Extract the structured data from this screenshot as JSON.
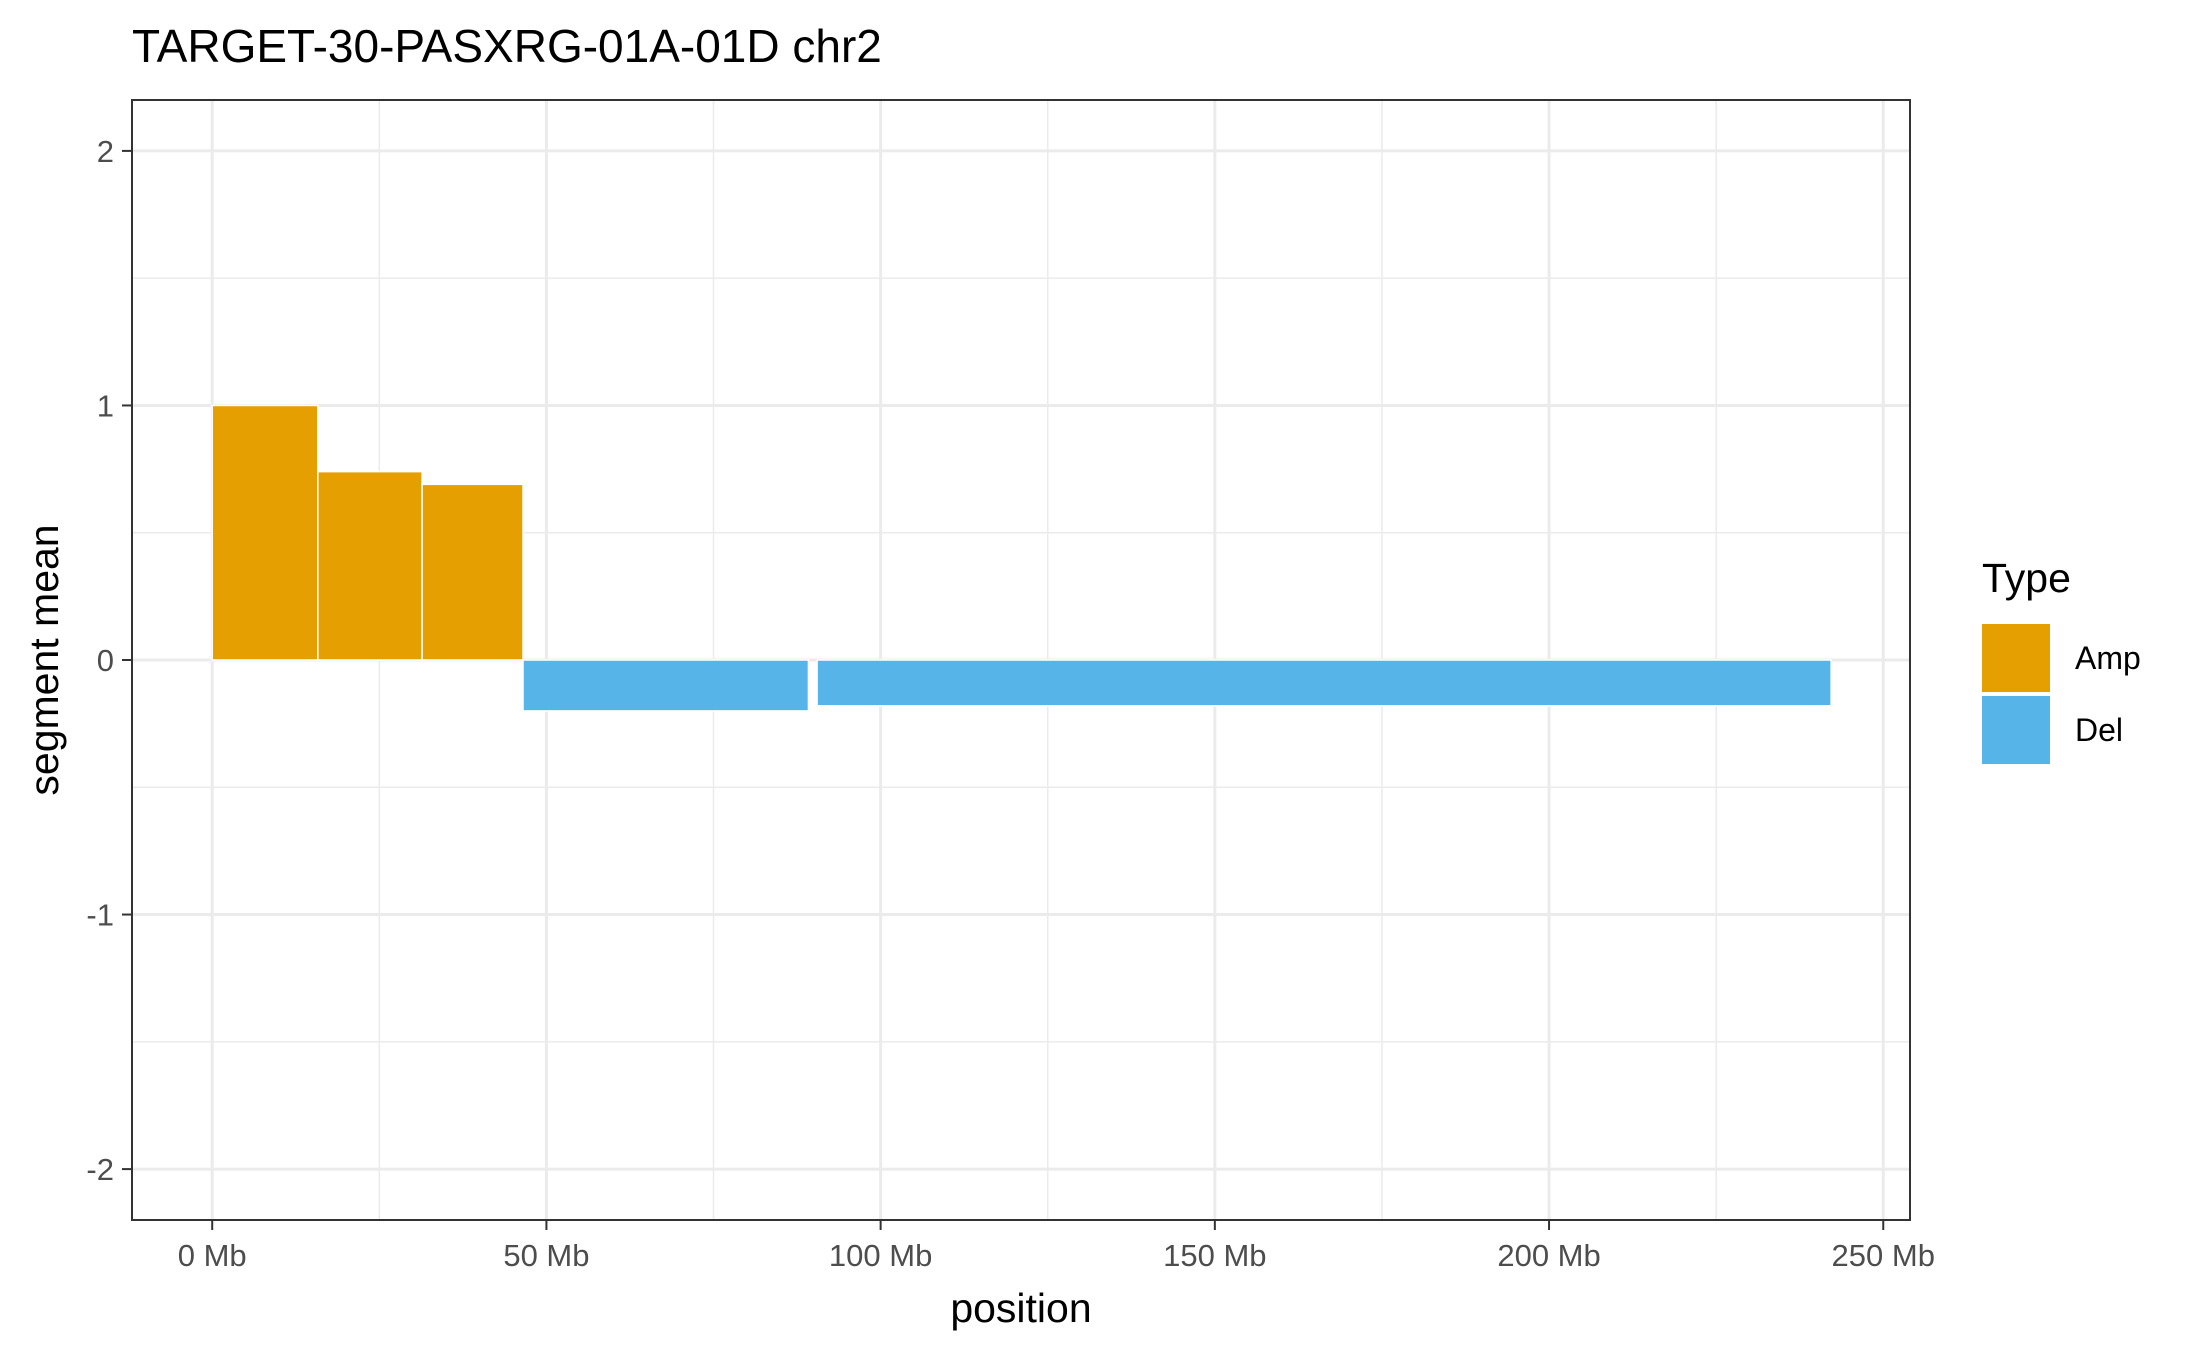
{
  "chart_data": {
    "type": "bar",
    "title": "TARGET-30-PASXRG-01A-01D chr2",
    "xlabel": "position",
    "ylabel": "segment mean",
    "xlim": [
      -12,
      254
    ],
    "ylim": [
      -2.2,
      2.2
    ],
    "x_ticks": [
      0,
      50,
      100,
      150,
      200,
      250
    ],
    "x_tick_labels": [
      "0 Mb",
      "50 Mb",
      "100 Mb",
      "150 Mb",
      "200 Mb",
      "250 Mb"
    ],
    "y_ticks": [
      -2,
      -1,
      0,
      1,
      2
    ],
    "y_tick_labels": [
      "-2",
      "-1",
      "0",
      "1",
      "2"
    ],
    "grid": true,
    "legend": {
      "title": "Type",
      "position": "right",
      "entries": [
        {
          "label": "Amp",
          "color": "#E69F00"
        },
        {
          "label": "Del",
          "color": "#56B4E9"
        }
      ]
    },
    "segments": [
      {
        "type": "Amp",
        "start": 0,
        "end": 15.8,
        "value": 1.0
      },
      {
        "type": "Amp",
        "start": 15.8,
        "end": 31.4,
        "value": 0.74
      },
      {
        "type": "Amp",
        "start": 31.4,
        "end": 46.5,
        "value": 0.69
      },
      {
        "type": "Del",
        "start": 46.5,
        "end": 89.2,
        "value": -0.2
      },
      {
        "type": "Del",
        "start": 90.5,
        "end": 242.2,
        "value": -0.18
      }
    ]
  }
}
